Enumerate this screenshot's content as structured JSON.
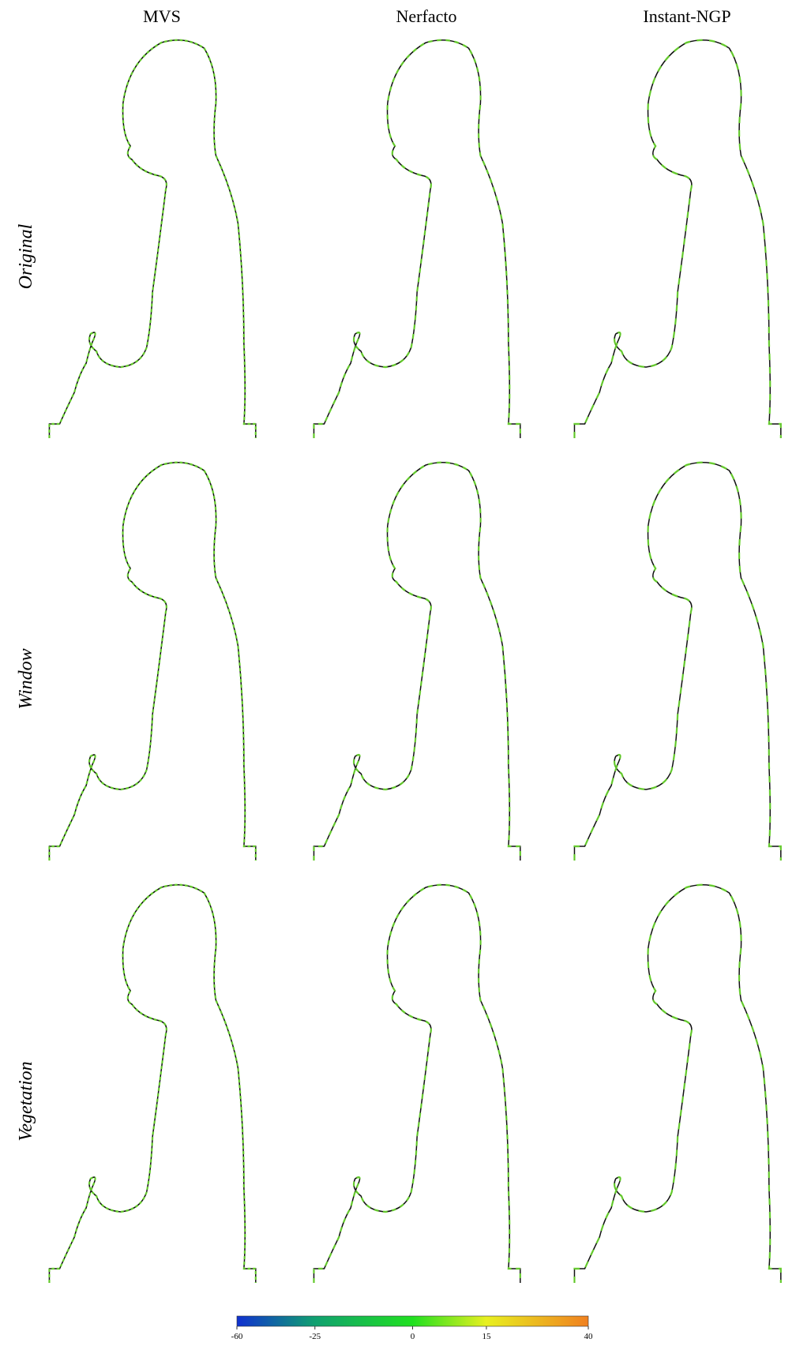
{
  "columns": [
    "MVS",
    "Nerfacto",
    "Instant-NGP"
  ],
  "rows": [
    "Original",
    "Window",
    "Vegetation"
  ],
  "colorbar": {
    "ticks": [
      -60,
      -25,
      0,
      15,
      40
    ],
    "colors": [
      "#1030d0",
      "#10a070",
      "#20e020",
      "#e8f020",
      "#f08020"
    ]
  }
}
